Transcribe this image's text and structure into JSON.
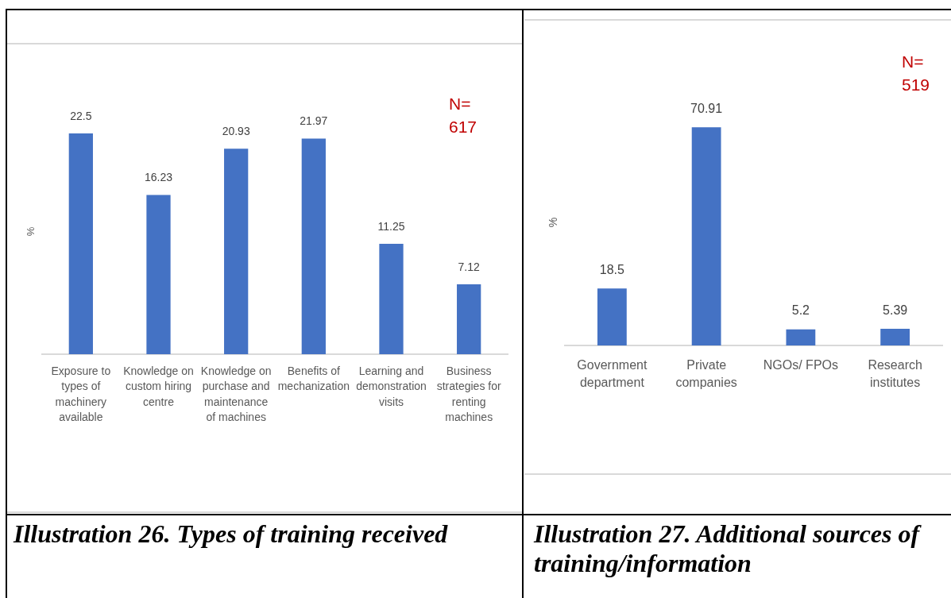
{
  "chart_data": [
    {
      "type": "bar",
      "title": "Illustration 26. Types of training received",
      "ylabel": "%",
      "categories": [
        "Exposure to types of machinery available",
        "Knowledge on custom hiring centre",
        "Knowledge on purchase and maintenance of machines",
        "Benefits of mechanization",
        "Learning and demonstration visits",
        "Business strategies for renting machines"
      ],
      "values": [
        22.5,
        16.23,
        20.93,
        21.97,
        11.25,
        7.12
      ],
      "color": "#4472c4",
      "data_labels": true,
      "tick_labels": "x",
      "annotations": [
        "N= 617"
      ]
    },
    {
      "type": "bar",
      "title": "Illustration 27. Additional sources of training/information",
      "ylabel": "%",
      "categories": [
        "Government department",
        "Private companies",
        "NGOs/ FPOs",
        "Research institutes"
      ],
      "values": [
        18.5,
        70.91,
        5.2,
        5.39
      ],
      "color": "#4472c4",
      "data_labels": true,
      "tick_labels": "x",
      "annotations": [
        "N= 519"
      ]
    }
  ]
}
